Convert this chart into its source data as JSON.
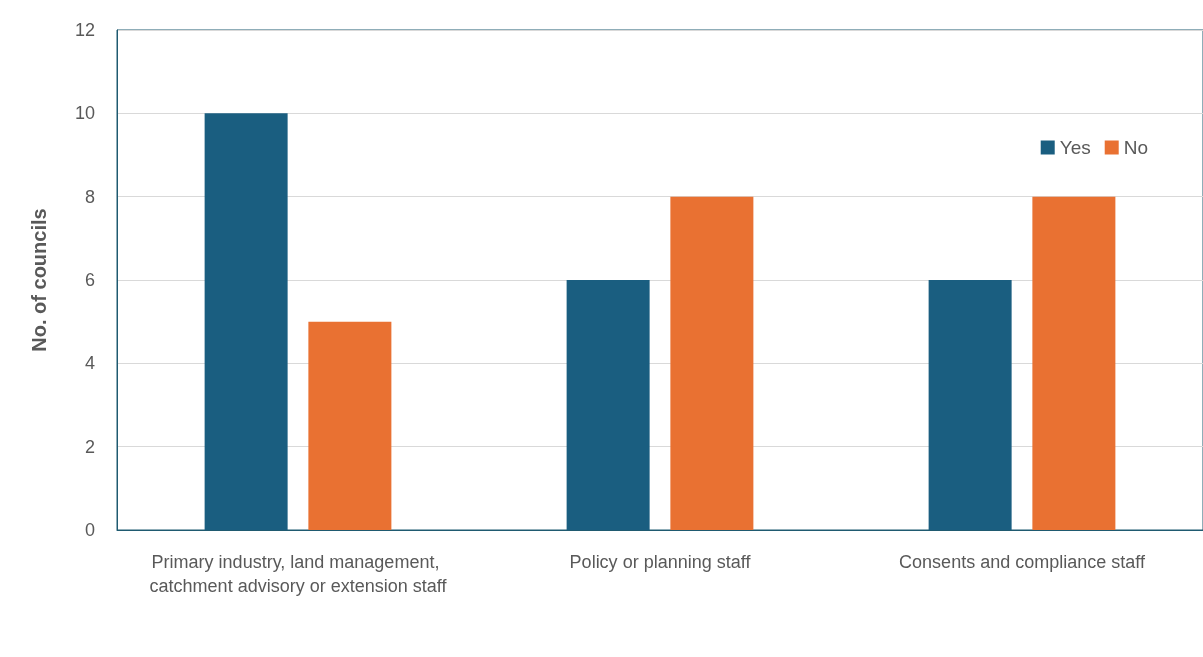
{
  "chart_data": {
    "type": "bar",
    "ylabel": "No. of councils",
    "categories": [
      "Primary industry, land management, catchment advisory or extension staff",
      "Policy or planning staff",
      "Consents and compliance staff"
    ],
    "series": [
      {
        "name": "Yes",
        "color": "#1a5e80",
        "values": [
          10,
          6,
          6
        ]
      },
      {
        "name": "No",
        "color": "#e97132",
        "values": [
          5,
          8,
          8
        ]
      }
    ],
    "ylim": [
      0,
      12
    ],
    "yticks": [
      0,
      2,
      4,
      6,
      8,
      10,
      12
    ],
    "grid": "y",
    "legend": "top right"
  }
}
